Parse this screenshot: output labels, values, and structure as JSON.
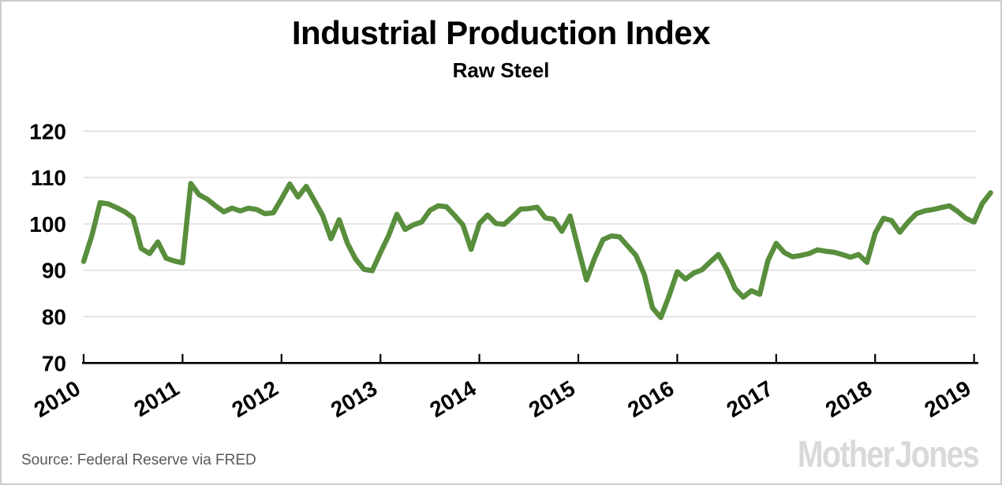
{
  "header": {
    "title": "Industrial Production Index",
    "subtitle": "Raw Steel"
  },
  "footer": {
    "source": "Source: Federal Reserve via FRED",
    "logo": "Mother Jones"
  },
  "colors": {
    "line": "#588e3c",
    "gridline": "#dbdbdb",
    "axis": "#000000",
    "tick_label": "#000000",
    "source_text": "#58595b",
    "logo_gray": "#d9d9d9",
    "border": "#cccccc"
  },
  "chart_data": {
    "type": "line",
    "title": "Industrial Production Index",
    "subtitle": "Raw Steel",
    "x_start": "2010-01",
    "x_end": "2019-03",
    "frequency": "monthly",
    "xticks": [
      "2010",
      "2011",
      "2012",
      "2013",
      "2014",
      "2015",
      "2016",
      "2017",
      "2018",
      "2019"
    ],
    "yticks": [
      70,
      80,
      90,
      100,
      110,
      120
    ],
    "ylim": [
      70,
      120
    ],
    "grid": "horizontal",
    "legend": "none",
    "line_color": "#588e3c",
    "series_by_year": {
      "2010": [
        91.9,
        97.5,
        104.6,
        104.3,
        103.5,
        102.6,
        101.3,
        94.7,
        93.6,
        96.1,
        92.6,
        92.0
      ],
      "2011": [
        91.6,
        108.7,
        106.3,
        105.3,
        103.9,
        102.6,
        103.4,
        102.8,
        103.4,
        103.1,
        102.2,
        102.4
      ],
      "2012": [
        105.4,
        108.6,
        105.8,
        108.1,
        105.0,
        101.8,
        96.8,
        100.9,
        95.8,
        92.4,
        90.2,
        89.9
      ],
      "2013": [
        93.8,
        97.5,
        102.1,
        98.8,
        99.8,
        100.4,
        102.9,
        103.9,
        103.7,
        101.8,
        99.8,
        94.5
      ],
      "2014": [
        100.1,
        101.9,
        100.1,
        99.9,
        101.5,
        103.2,
        103.3,
        103.6,
        101.3,
        101.0,
        98.4,
        101.7
      ],
      "2015": [
        94.7,
        87.9,
        92.7,
        96.6,
        97.4,
        97.2,
        95.2,
        93.2,
        89.1,
        81.9,
        79.8,
        84.4
      ],
      "2016": [
        89.7,
        88.1,
        89.4,
        90.1,
        91.8,
        93.4,
        90.2,
        86.1,
        84.2,
        85.6,
        84.8,
        92.1
      ],
      "2017": [
        95.8,
        93.8,
        92.9,
        93.2,
        93.6,
        94.4,
        94.1,
        93.9,
        93.4,
        92.8,
        93.4,
        91.7
      ],
      "2018": [
        98.0,
        101.2,
        100.7,
        98.2,
        100.4,
        102.2,
        102.8,
        103.1,
        103.5,
        103.9,
        102.7,
        101.2
      ],
      "2019": [
        100.4,
        104.4,
        106.7
      ]
    }
  }
}
